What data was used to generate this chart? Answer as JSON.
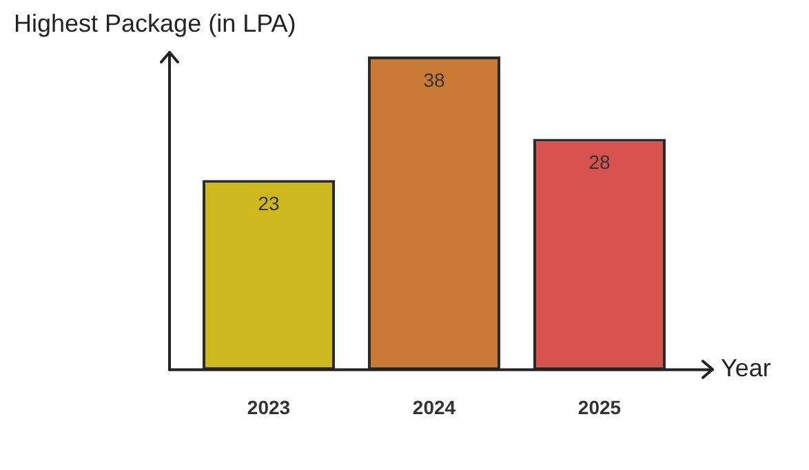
{
  "chart_data": {
    "type": "bar",
    "ylabel": "Highest Package (in LPA)",
    "xlabel": "Year",
    "categories": [
      "2023",
      "2024",
      "2025"
    ],
    "values": [
      23,
      38,
      28
    ],
    "colors": [
      "#cdb81e",
      "#c97a35",
      "#d6524f"
    ],
    "data_labels": true,
    "grid": false,
    "legend": false
  }
}
